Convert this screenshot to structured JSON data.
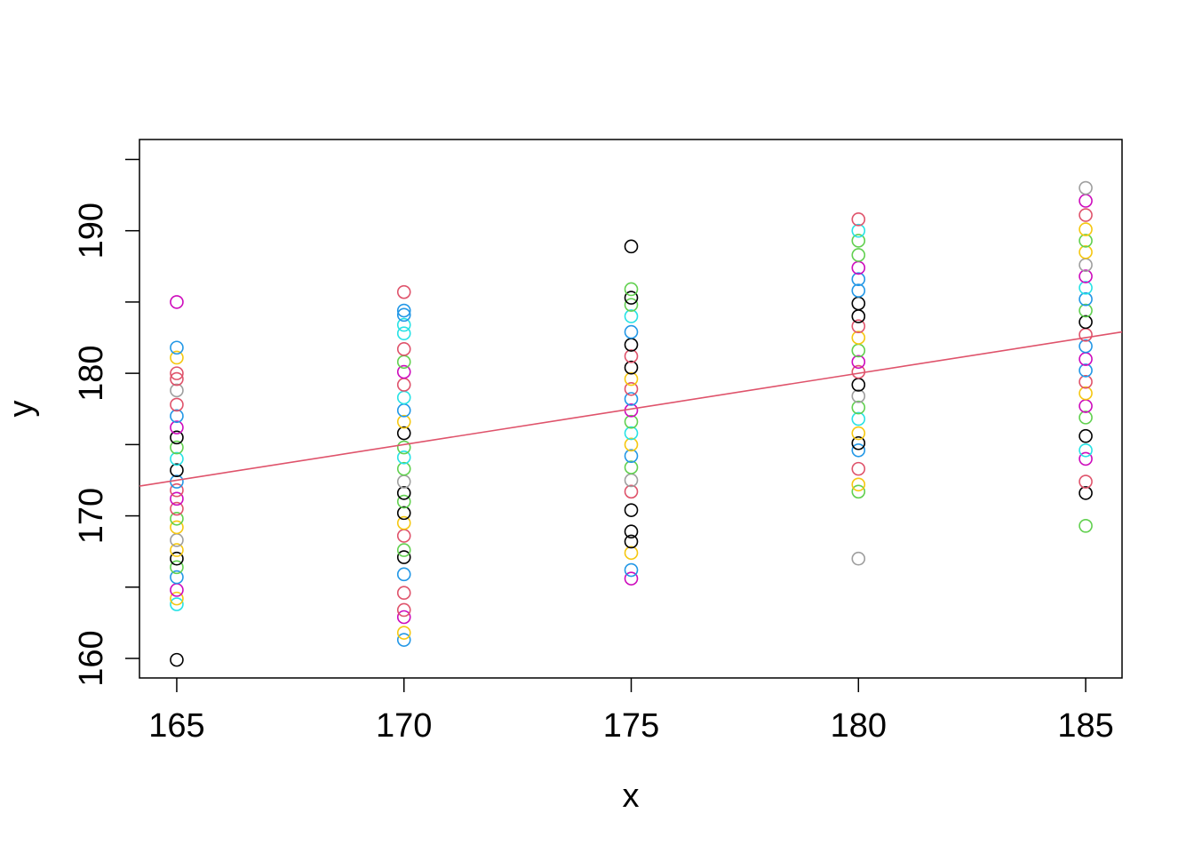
{
  "chart_data": {
    "type": "scatter",
    "xlabel": "x",
    "ylabel": "y",
    "xlim": [
      164.18,
      185.8
    ],
    "ylim": [
      158.63,
      196.4
    ],
    "xticks": [
      165,
      170,
      175,
      180,
      185
    ],
    "yticks": [
      160,
      170,
      180,
      190
    ],
    "yminor_ticks": [
      165,
      175,
      185,
      195
    ],
    "palette": [
      "#000000",
      "#DF536B",
      "#61D04F",
      "#2297E6",
      "#28E2E5",
      "#CD0BBC",
      "#F5C710",
      "#9E9E9E"
    ],
    "fit": {
      "intercept": 90,
      "slope": 0.5,
      "color": "#DF536B"
    },
    "series": [
      {
        "x": 165,
        "y": [
          159.9,
          163.8,
          164.2,
          164.8,
          165.7,
          166.4,
          167.0,
          167.6,
          168.3,
          169.2,
          169.8,
          170.5,
          171.2,
          171.8,
          172.4,
          173.2,
          174.0,
          174.8,
          175.5,
          176.2,
          177.0,
          177.8,
          178.8,
          179.6,
          180.0,
          181.1,
          181.8,
          185.0
        ],
        "colors": [
          0,
          4,
          6,
          5,
          3,
          2,
          0,
          6,
          7,
          6,
          2,
          1,
          5,
          1,
          3,
          0,
          4,
          2,
          0,
          5,
          3,
          1,
          7,
          1,
          1,
          6,
          3,
          5
        ]
      },
      {
        "x": 170,
        "y": [
          161.3,
          161.8,
          162.9,
          163.4,
          164.6,
          165.9,
          167.1,
          167.6,
          168.6,
          169.5,
          170.2,
          171.0,
          171.6,
          172.4,
          173.3,
          174.1,
          174.8,
          175.8,
          176.6,
          177.4,
          178.3,
          179.2,
          180.1,
          180.8,
          181.7,
          182.8,
          183.4,
          184.1,
          184.4,
          185.7
        ],
        "colors": [
          3,
          6,
          5,
          1,
          1,
          3,
          0,
          2,
          1,
          6,
          0,
          2,
          0,
          7,
          2,
          4,
          2,
          0,
          6,
          3,
          4,
          1,
          5,
          2,
          1,
          4,
          4,
          3,
          3,
          1
        ]
      },
      {
        "x": 175,
        "y": [
          165.6,
          166.2,
          167.4,
          168.2,
          168.9,
          170.4,
          171.7,
          172.5,
          173.4,
          174.2,
          175.0,
          175.8,
          176.6,
          177.4,
          178.2,
          178.9,
          179.6,
          180.4,
          181.2,
          182.0,
          182.9,
          184.0,
          184.8,
          185.3,
          185.9,
          188.9
        ],
        "colors": [
          5,
          3,
          6,
          0,
          0,
          0,
          1,
          7,
          2,
          3,
          6,
          4,
          2,
          5,
          3,
          1,
          6,
          0,
          1,
          0,
          3,
          4,
          2,
          0,
          2,
          0
        ]
      },
      {
        "x": 180,
        "y": [
          167.0,
          171.7,
          172.2,
          173.3,
          174.6,
          175.1,
          175.8,
          176.8,
          177.6,
          178.4,
          179.2,
          180.1,
          180.8,
          181.6,
          182.5,
          183.3,
          184.0,
          184.9,
          185.8,
          186.6,
          187.4,
          188.3,
          189.3,
          190.0,
          190.8
        ],
        "colors": [
          7,
          2,
          6,
          1,
          3,
          0,
          6,
          4,
          2,
          7,
          0,
          1,
          5,
          2,
          6,
          1,
          0,
          0,
          3,
          3,
          5,
          2,
          2,
          4,
          1
        ]
      },
      {
        "x": 185,
        "y": [
          169.3,
          171.6,
          172.4,
          174.0,
          174.6,
          175.6,
          176.9,
          177.7,
          178.6,
          179.4,
          180.2,
          181.0,
          181.9,
          182.7,
          183.6,
          184.4,
          185.2,
          186.0,
          186.8,
          187.6,
          188.5,
          189.3,
          190.1,
          191.1,
          192.1,
          193.0
        ],
        "colors": [
          2,
          0,
          1,
          5,
          4,
          0,
          2,
          5,
          6,
          1,
          3,
          5,
          3,
          1,
          0,
          2,
          3,
          4,
          5,
          7,
          6,
          2,
          6,
          1,
          5,
          7
        ]
      }
    ]
  }
}
